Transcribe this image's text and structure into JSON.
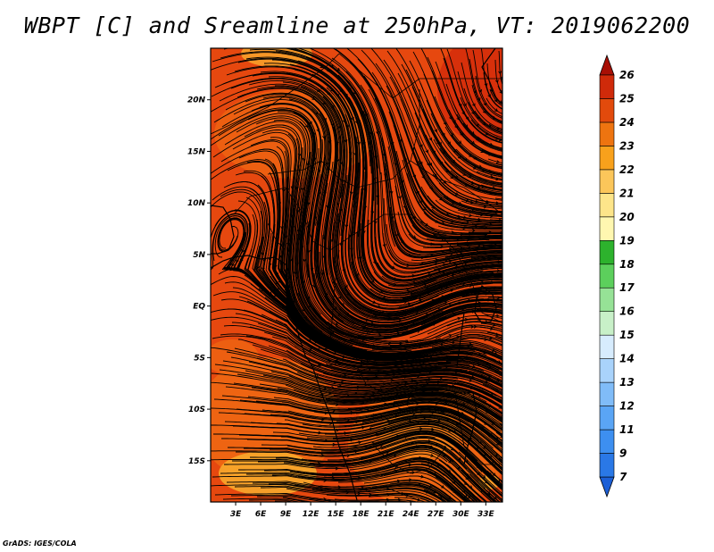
{
  "title": "WBPT [C] and Sreamline at 250hPa, VT: 2019062200",
  "credit": "GrADS: IGES/COLA",
  "map": {
    "type": "heatmap",
    "variable": "WBPT [C]",
    "overlay": "streamlines",
    "level": "250hPa",
    "valid_time": "2019062200",
    "lon_range": [
      0,
      35
    ],
    "lat_range": [
      -19,
      25
    ],
    "x_ticks": [
      "3E",
      "6E",
      "9E",
      "12E",
      "15E",
      "18E",
      "21E",
      "24E",
      "27E",
      "30E",
      "33E"
    ],
    "x_tick_values": [
      3,
      6,
      9,
      12,
      15,
      18,
      21,
      24,
      27,
      30,
      33
    ],
    "y_ticks": [
      "20N",
      "15N",
      "10N",
      "5N",
      "EQ",
      "5S",
      "10S",
      "15S"
    ],
    "y_tick_values": [
      20,
      15,
      10,
      5,
      0,
      -5,
      -10,
      -15
    ]
  },
  "colorbar": {
    "levels": [
      "7",
      "9",
      "11",
      "12",
      "13",
      "14",
      "15",
      "16",
      "17",
      "18",
      "19",
      "20",
      "21",
      "22",
      "23",
      "24",
      "25",
      "26"
    ],
    "colors": [
      "#1c5fd6",
      "#2a78e6",
      "#3d8ff0",
      "#5aa5f5",
      "#80bcf8",
      "#a9d3fb",
      "#d7ecfd",
      "#c8f0c8",
      "#96e296",
      "#5ccf5c",
      "#2db22d",
      "#fff7b0",
      "#fde58a",
      "#fbc65a",
      "#f8a11c",
      "#ee7410",
      "#e24a0c",
      "#cf2a0a",
      "#a80f05"
    ]
  },
  "colors": {
    "warm_main": "#e84c12",
    "warm_light": "#f06a14",
    "hot_spot": "#d62f0a",
    "cool_spot": "#f9a82a",
    "streamline": "#000000"
  }
}
